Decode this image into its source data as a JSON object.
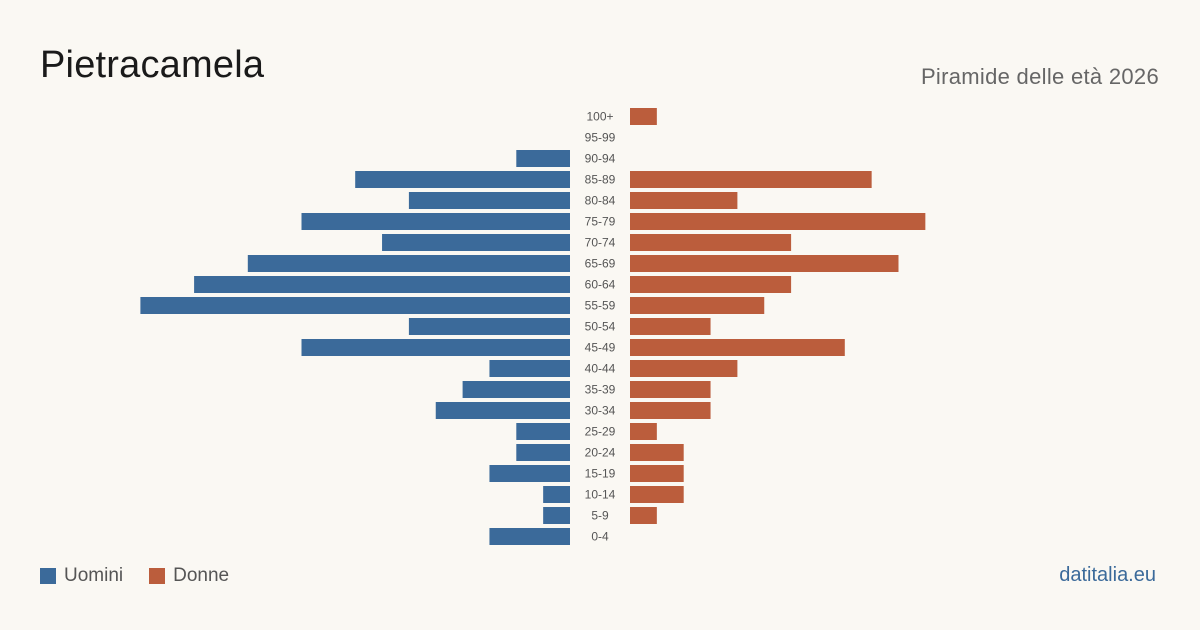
{
  "header": {
    "title": "Pietracamela",
    "subtitle": "Piramide delle età 2026"
  },
  "legend": {
    "men_label": "Uomini",
    "women_label": "Donne"
  },
  "footer": {
    "brand": "datitalia.eu"
  },
  "colors": {
    "men": "#3b6a9a",
    "women": "#bb5d3c"
  },
  "chart_data": {
    "type": "bar",
    "orientation": "horizontal-diverging",
    "categories": [
      "100+",
      "95-99",
      "90-94",
      "85-89",
      "80-84",
      "75-79",
      "70-74",
      "65-69",
      "60-64",
      "55-59",
      "50-54",
      "45-49",
      "40-44",
      "35-39",
      "30-34",
      "25-29",
      "20-24",
      "15-19",
      "10-14",
      "5-9",
      "0-4"
    ],
    "series": [
      {
        "name": "Uomini",
        "side": "left",
        "values": [
          0,
          0,
          2,
          8,
          6,
          10,
          7,
          12,
          14,
          16,
          6,
          10,
          3,
          4,
          5,
          2,
          2,
          3,
          1,
          1,
          3
        ]
      },
      {
        "name": "Donne",
        "side": "right",
        "values": [
          1,
          0,
          0,
          9,
          4,
          11,
          6,
          10,
          6,
          5,
          3,
          8,
          4,
          3,
          3,
          1,
          2,
          2,
          2,
          1,
          0
        ]
      }
    ],
    "legend_position": "bottom-left",
    "grid": false
  }
}
